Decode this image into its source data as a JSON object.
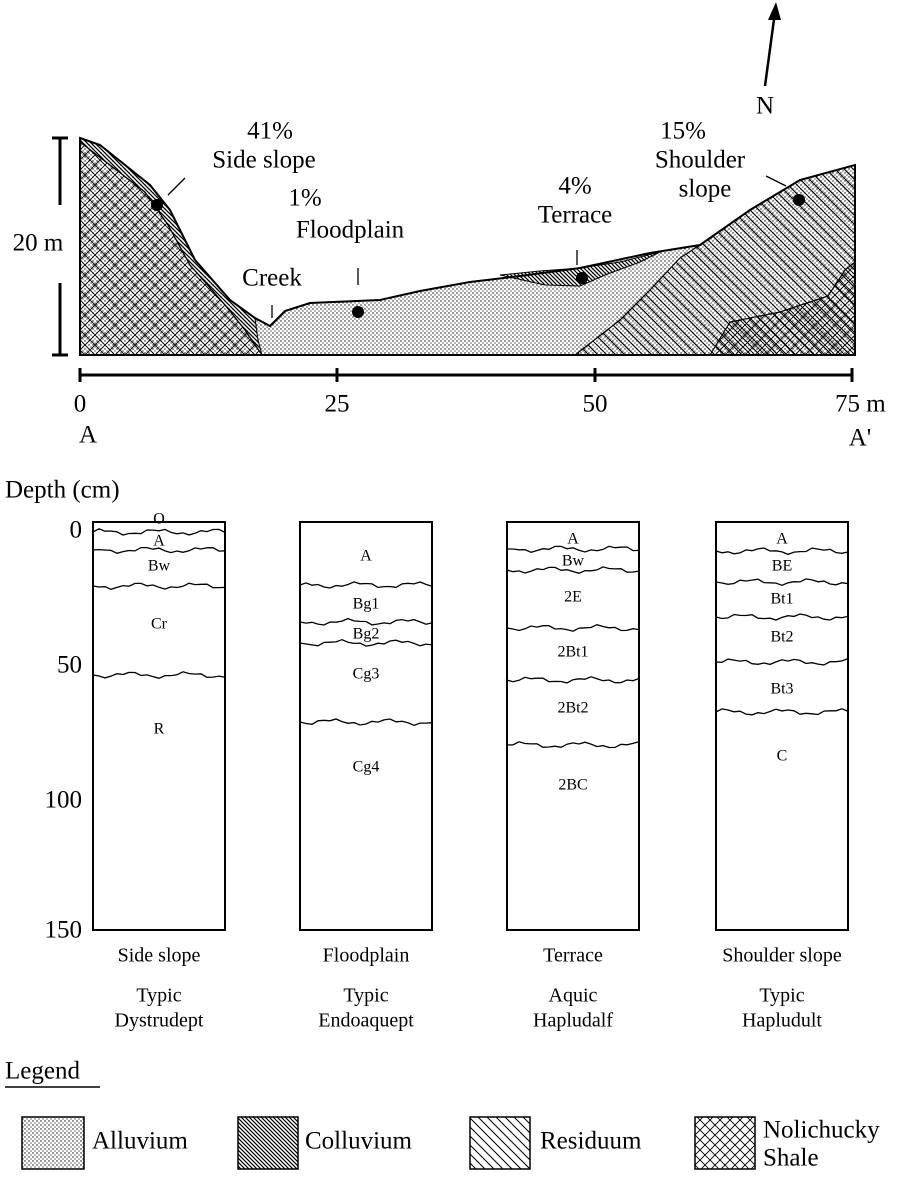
{
  "cross_section": {
    "north": "N",
    "scale_bar": "20 m",
    "creek": "Creek",
    "sites": [
      {
        "slope": "41%",
        "name_lines": [
          "Side slope"
        ]
      },
      {
        "slope": "1%",
        "name_lines": [
          "Floodplain"
        ]
      },
      {
        "slope": "4%",
        "name_lines": [
          "Terrace"
        ]
      },
      {
        "slope": "15%",
        "name_lines": [
          "Shoulder",
          "slope"
        ]
      }
    ],
    "distance_ticks": [
      "0",
      "25",
      "50",
      "75 m"
    ],
    "ends": [
      "A",
      "A'"
    ]
  },
  "profiles": {
    "axis_label": "Depth (cm)",
    "ticks": [
      "0",
      "50",
      "100",
      "150"
    ],
    "columns": [
      {
        "position": "Side slope",
        "classification": [
          "Typic",
          "Dystrudept"
        ],
        "horizons": [
          "O",
          "A",
          "Bw",
          "Cr",
          "R"
        ]
      },
      {
        "position": "Floodplain",
        "classification": [
          "Typic",
          "Endoaquept"
        ],
        "horizons": [
          "A",
          "Bg1",
          "Bg2",
          "Cg3",
          "Cg4"
        ]
      },
      {
        "position": "Terrace",
        "classification": [
          "Aquic",
          "Hapludalf"
        ],
        "horizons": [
          "A",
          "Bw",
          "2E",
          "2Bt1",
          "2Bt2",
          "2BC"
        ]
      },
      {
        "position": "Shoulder slope",
        "classification": [
          "Typic",
          "Hapludult"
        ],
        "horizons": [
          "A",
          "BE",
          "Bt1",
          "Bt2",
          "Bt3",
          "C"
        ]
      }
    ]
  },
  "legend": {
    "title": "Legend",
    "items": [
      {
        "label_lines": [
          "Alluvium"
        ]
      },
      {
        "label_lines": [
          "Colluvium"
        ]
      },
      {
        "label_lines": [
          "Residuum"
        ]
      },
      {
        "label_lines": [
          "Nolichucky",
          "Shale"
        ]
      }
    ]
  }
}
